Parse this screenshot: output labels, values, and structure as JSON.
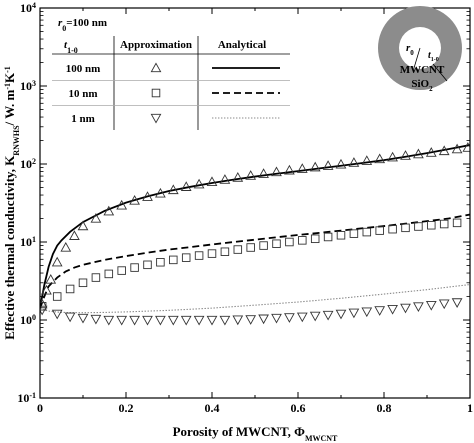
{
  "chart_data": {
    "type": "scatter",
    "x_axis": {
      "label": "Porosity of MWCNT, Φ",
      "label_sub": "MWCNT",
      "range": [
        0,
        1
      ],
      "ticks": [
        0,
        0.2,
        0.4,
        0.6,
        0.8,
        1
      ],
      "tick_labels": [
        "0",
        "0.2",
        "0.4",
        "0.6",
        "0.8",
        "1"
      ]
    },
    "y_axis": {
      "scale": "log",
      "label_prefix": "Effective thermal conductivity, K",
      "label_sub": "RNWHS",
      "label_unit": "/ W. m",
      "label_sup1": "-1",
      "label_unit2": "K",
      "label_sup2": "-1",
      "range": [
        0.1,
        10000
      ],
      "ticks": [
        0.1,
        1,
        10,
        100,
        1000,
        10000
      ],
      "tick_base": "10",
      "tick_exponents": [
        "-1",
        "0",
        "1",
        "2",
        "3",
        "4"
      ]
    },
    "legend": {
      "placement": "top-left",
      "param_r0": {
        "symbol": "r",
        "sub": "0",
        "text": "=100 nm"
      },
      "col_t": {
        "symbol": "t",
        "sub": "1-0"
      },
      "col_approx": "Approximation",
      "col_analytical": "Analytical",
      "rows": [
        {
          "label": "100 nm",
          "marker": "triangle-up",
          "line": "solid"
        },
        {
          "label": "10 nm",
          "marker": "square",
          "line": "dashed"
        },
        {
          "label": "1 nm",
          "marker": "triangle-down",
          "line": "dotted"
        }
      ]
    },
    "inset": {
      "r_symbol": "r",
      "r_sub": "0",
      "t_symbol": "t",
      "t_sub": "1-0",
      "core_label": "MWCNT",
      "shell_label": "SiO",
      "shell_sub": "2",
      "colors": {
        "shell": "#8c8c8c",
        "core": "#ffffff"
      }
    },
    "series": [
      {
        "name": "100 nm",
        "marker": "triangle-up",
        "line_style": "solid",
        "approximation": {
          "x": [
            0.005,
            0.015,
            0.025,
            0.04,
            0.06,
            0.08,
            0.1,
            0.13,
            0.16,
            0.19,
            0.22,
            0.25,
            0.28,
            0.31,
            0.34,
            0.37,
            0.4,
            0.43,
            0.46,
            0.49,
            0.52,
            0.55,
            0.58,
            0.61,
            0.64,
            0.67,
            0.7,
            0.73,
            0.76,
            0.79,
            0.82,
            0.85,
            0.88,
            0.91,
            0.94,
            0.97,
            0.995
          ],
          "y": [
            1.6,
            2.4,
            3.3,
            5.5,
            8.5,
            12,
            16,
            20,
            24.8,
            29.5,
            34,
            38,
            42,
            46.5,
            51,
            55,
            59,
            63,
            67,
            71,
            75,
            79,
            83,
            87,
            91,
            95,
            99,
            104,
            110,
            116,
            122,
            128,
            134,
            140,
            147,
            155,
            162
          ]
        },
        "analytical": {
          "x": [
            0,
            0.005,
            0.01,
            0.02,
            0.03,
            0.04,
            0.05,
            0.07,
            0.1,
            0.15,
            0.2,
            0.25,
            0.3,
            0.35,
            0.4,
            0.45,
            0.5,
            0.55,
            0.6,
            0.65,
            0.7,
            0.75,
            0.8,
            0.85,
            0.9,
            0.95,
            1
          ],
          "y": [
            1.4,
            2.0,
            2.8,
            4.8,
            7.0,
            9.0,
            10.5,
            13.5,
            18,
            25,
            32,
            38.5,
            45,
            51,
            57,
            63,
            69,
            75,
            81,
            88,
            95,
            103,
            112,
            124,
            138,
            155,
            175
          ]
        }
      },
      {
        "name": "10 nm",
        "marker": "square",
        "line_style": "dashed",
        "approximation": {
          "x": [
            0.005,
            0.04,
            0.07,
            0.1,
            0.13,
            0.16,
            0.19,
            0.22,
            0.25,
            0.28,
            0.31,
            0.34,
            0.37,
            0.4,
            0.43,
            0.46,
            0.49,
            0.52,
            0.55,
            0.58,
            0.61,
            0.64,
            0.67,
            0.7,
            0.73,
            0.76,
            0.79,
            0.82,
            0.85,
            0.88,
            0.91,
            0.94,
            0.97
          ],
          "y": [
            1.5,
            2.0,
            2.5,
            3.0,
            3.5,
            3.9,
            4.3,
            4.7,
            5.1,
            5.5,
            5.9,
            6.3,
            6.7,
            7.1,
            7.5,
            8.0,
            8.5,
            9.0,
            9.5,
            10.0,
            10.5,
            11.0,
            11.6,
            12.2,
            12.8,
            13.4,
            14.0,
            14.6,
            15.2,
            15.8,
            16.4,
            17.0,
            17.6
          ]
        },
        "analytical": {
          "x": [
            0,
            0.01,
            0.02,
            0.04,
            0.06,
            0.08,
            0.1,
            0.15,
            0.2,
            0.25,
            0.3,
            0.35,
            0.4,
            0.45,
            0.5,
            0.55,
            0.6,
            0.65,
            0.7,
            0.75,
            0.8,
            0.85,
            0.9,
            0.95,
            1
          ],
          "y": [
            1.4,
            2.0,
            2.7,
            3.5,
            4.2,
            4.7,
            5.1,
            5.9,
            6.6,
            7.3,
            8.0,
            8.6,
            9.3,
            10.0,
            10.7,
            11.5,
            12.3,
            13.1,
            14.0,
            15.0,
            16.0,
            17.2,
            18.5,
            20.0,
            22.5
          ]
        }
      },
      {
        "name": "1 nm",
        "marker": "triangle-down",
        "line_style": "dotted",
        "approximation": {
          "x": [
            0.005,
            0.04,
            0.07,
            0.1,
            0.13,
            0.16,
            0.19,
            0.22,
            0.25,
            0.28,
            0.31,
            0.34,
            0.37,
            0.4,
            0.43,
            0.46,
            0.49,
            0.52,
            0.55,
            0.58,
            0.61,
            0.64,
            0.67,
            0.7,
            0.73,
            0.76,
            0.79,
            0.82,
            0.85,
            0.88,
            0.91,
            0.94,
            0.97
          ],
          "y": [
            1.35,
            1.2,
            1.1,
            1.06,
            1.03,
            1.0,
            1.0,
            1.0,
            1.0,
            1.0,
            1.0,
            1.0,
            1.0,
            1.0,
            1.0,
            1.01,
            1.02,
            1.04,
            1.06,
            1.08,
            1.1,
            1.13,
            1.16,
            1.2,
            1.24,
            1.28,
            1.33,
            1.38,
            1.43,
            1.49,
            1.55,
            1.62,
            1.68
          ]
        },
        "analytical": {
          "x": [
            0,
            0.02,
            0.05,
            0.1,
            0.15,
            0.2,
            0.3,
            0.4,
            0.5,
            0.6,
            0.7,
            0.8,
            0.9,
            1
          ],
          "y": [
            1.4,
            1.3,
            1.25,
            1.24,
            1.25,
            1.27,
            1.33,
            1.42,
            1.55,
            1.7,
            1.9,
            2.15,
            2.45,
            2.85
          ]
        }
      }
    ]
  }
}
